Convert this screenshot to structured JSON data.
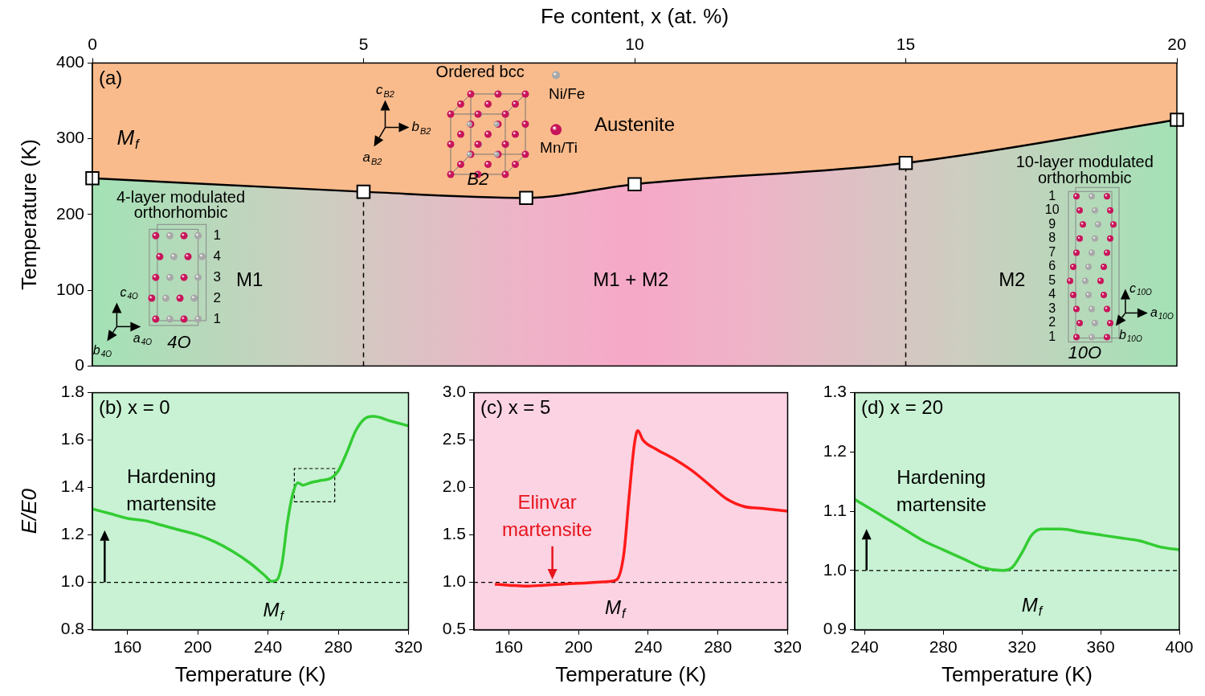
{
  "chart_data": [
    {
      "type": "line",
      "title": "(a)",
      "x_label": "Fe content, x (at. %)",
      "y_label": "Temperature (K)",
      "xlim": [
        0,
        20
      ],
      "xticks": [
        0,
        5,
        10,
        15,
        20
      ],
      "ylim": [
        0,
        400
      ],
      "yticks": [
        0,
        100,
        200,
        300,
        400
      ],
      "grid": false,
      "series": [
        {
          "name": "Mf",
          "color": "#000000",
          "marker": "square",
          "x": [
            0,
            5,
            8,
            10,
            15,
            20
          ],
          "values": [
            248,
            230,
            222,
            240,
            268,
            325
          ]
        }
      ],
      "phase_boundaries": [
        5,
        15
      ],
      "annotations": {
        "austenite": "Austenite",
        "m1": "M1",
        "m1m2": "M1 + M2",
        "m2": "M2",
        "b2_title": "Ordered bcc",
        "b2": "B2",
        "ni_fe": "Ni/Fe",
        "mn_ti": "Mn/Ti",
        "o4_title": "4-layer modulated orthorhombic",
        "o4": "4O",
        "o10_title": "10-layer modulated orthorhombic",
        "o10": "10O",
        "b2_axes": [
          "cB2",
          "bB2",
          "aB2"
        ],
        "o4_axes": [
          "c4O",
          "a4O",
          "b4O"
        ],
        "o10_axes": [
          "c10O",
          "a10O",
          "b10O"
        ],
        "o4_layers": [
          "1",
          "4",
          "3",
          "2",
          "1"
        ],
        "o10_layers": [
          "1",
          "10",
          "9",
          "8",
          "7",
          "6",
          "5",
          "4",
          "3",
          "2",
          "1"
        ]
      }
    },
    {
      "type": "line",
      "title": "(b) x = 0",
      "x_label": "Temperature (K)",
      "y_label": "E/E0",
      "xlim": [
        140,
        320
      ],
      "xticks": [
        160,
        200,
        240,
        280,
        320
      ],
      "ylim": [
        0.8,
        1.8
      ],
      "yticks": [
        0.8,
        {
          "value": 1,
          "label": "1.0"
        },
        1.2,
        1.4,
        1.6,
        1.8
      ],
      "grid": false,
      "series": [
        {
          "name": "x = 0",
          "color": "#33cc33",
          "x": [
            140,
            150,
            160,
            170,
            180,
            190,
            200,
            210,
            220,
            230,
            238,
            242,
            245,
            248,
            251,
            254,
            257,
            260,
            264,
            270,
            276,
            280,
            285,
            290,
            295,
            300,
            310,
            320
          ],
          "values": [
            1.31,
            1.29,
            1.27,
            1.26,
            1.24,
            1.22,
            1.2,
            1.17,
            1.13,
            1.08,
            1.03,
            1.005,
            1.01,
            1.08,
            1.25,
            1.37,
            1.42,
            1.41,
            1.42,
            1.43,
            1.44,
            1.47,
            1.55,
            1.64,
            1.69,
            1.7,
            1.68,
            1.66
          ]
        }
      ],
      "baseline": 1,
      "highlight_box": {
        "x": [
          255,
          278
        ],
        "y": [
          1.34,
          1.48
        ]
      },
      "mf_label": "Mf",
      "annotation": {
        "text": "Hardening martensite",
        "color": "#000000",
        "arrow": {
          "x": 147,
          "from": 1,
          "to": 1.22
        }
      }
    },
    {
      "type": "line",
      "title": "(c) x = 5",
      "x_label": "Temperature (K)",
      "xlim": [
        140,
        320
      ],
      "xticks": [
        160,
        200,
        240,
        280,
        320
      ],
      "ylim": [
        0.5,
        3.0
      ],
      "yticks": [
        0.5,
        {
          "value": 1,
          "label": "1.0"
        },
        1.5,
        {
          "value": 2,
          "label": "2.0"
        },
        2.5,
        {
          "value": 3,
          "label": "3.0"
        }
      ],
      "grid": false,
      "series": [
        {
          "name": "x = 5",
          "color": "#ff1a1a",
          "x": [
            152,
            160,
            170,
            180,
            190,
            200,
            210,
            218,
            222,
            226,
            229,
            232,
            234,
            237,
            245,
            255,
            265,
            275,
            285,
            295,
            305,
            320
          ],
          "values": [
            0.98,
            0.97,
            0.96,
            0.97,
            0.98,
            0.99,
            1.0,
            1.01,
            1.03,
            1.3,
            1.9,
            2.45,
            2.6,
            2.5,
            2.4,
            2.3,
            2.18,
            2.03,
            1.88,
            1.8,
            1.78,
            1.75
          ]
        }
      ],
      "baseline": 1,
      "mf_label": "Mf",
      "annotation": {
        "text": "Elinvar martensite",
        "color": "#e8141c",
        "arrow": {
          "x": 185,
          "from": 1.38,
          "to": 1.03
        }
      }
    },
    {
      "type": "line",
      "title": "(d) x = 20",
      "x_label": "Temperature (K)",
      "xlim": [
        235,
        400
      ],
      "xticks": [
        240,
        280,
        320,
        360,
        400
      ],
      "ylim": [
        0.9,
        1.3
      ],
      "yticks": [
        0.9,
        {
          "value": 1,
          "label": "1.0"
        },
        1.1,
        1.2,
        1.3
      ],
      "grid": false,
      "series": [
        {
          "name": "x = 20",
          "color": "#33cc33",
          "x": [
            235,
            240,
            250,
            260,
            270,
            280,
            290,
            300,
            310,
            315,
            320,
            325,
            330,
            340,
            350,
            360,
            370,
            380,
            390,
            400
          ],
          "values": [
            1.12,
            1.11,
            1.09,
            1.07,
            1.05,
            1.035,
            1.02,
            1.005,
            1.0,
            1.005,
            1.03,
            1.06,
            1.07,
            1.07,
            1.065,
            1.06,
            1.055,
            1.05,
            1.04,
            1.035
          ]
        }
      ],
      "baseline": 1,
      "mf_label": "Mf",
      "annotation": {
        "text": "Hardening martensite",
        "color": "#000000",
        "arrow": {
          "x": 241,
          "from": 1,
          "to": 1.07
        }
      }
    }
  ]
}
